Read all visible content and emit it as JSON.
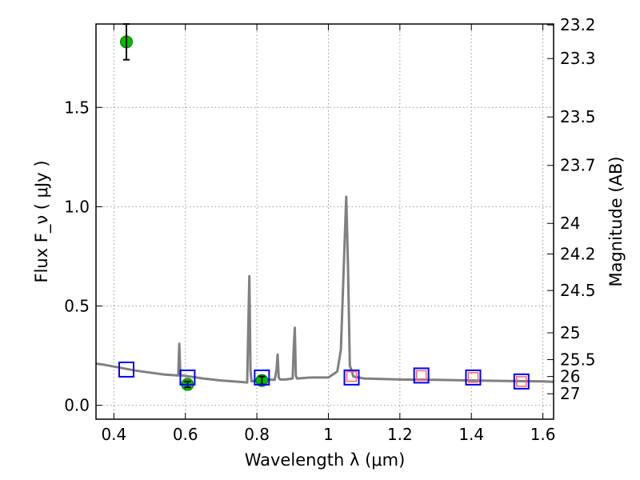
{
  "chart_data": {
    "type": "scatter",
    "xlabel": "Wavelength  λ (μm)",
    "ylabel": "Flux  F_ν  ( μJy )",
    "y2label": "Magnitude (AB)",
    "xlim": [
      0.35,
      1.63
    ],
    "ylim": [
      -0.07,
      1.92
    ],
    "grid": true,
    "x_ticks": [
      {
        "value": 0.4,
        "label": "0.4"
      },
      {
        "value": 0.6,
        "label": "0.6"
      },
      {
        "value": 0.8,
        "label": "0.8"
      },
      {
        "value": 1.0,
        "label": "1"
      },
      {
        "value": 1.2,
        "label": "1.2"
      },
      {
        "value": 1.4,
        "label": "1.4"
      },
      {
        "value": 1.6,
        "label": "1.6"
      }
    ],
    "y_ticks": [
      {
        "value": 0.0,
        "label": "0.0"
      },
      {
        "value": 0.5,
        "label": "0.5"
      },
      {
        "value": 1.0,
        "label": "1.0"
      },
      {
        "value": 1.5,
        "label": "1.5"
      }
    ],
    "y2_ticks": [
      {
        "label": "23.2",
        "flux": 1.915
      },
      {
        "label": "23.3",
        "flux": 1.746
      },
      {
        "label": "23.5",
        "flux": 1.452
      },
      {
        "label": "23.7",
        "flux": 1.208
      },
      {
        "label": "24",
        "flux": 0.916
      },
      {
        "label": "24.2",
        "flux": 0.762
      },
      {
        "label": "24.5",
        "flux": 0.578
      },
      {
        "label": "25",
        "flux": 0.365
      },
      {
        "label": "25.5",
        "flux": 0.23
      },
      {
        "label": "26",
        "flux": 0.145
      },
      {
        "label": "27",
        "flux": 0.058
      }
    ],
    "series": [
      {
        "kind": "line",
        "color": "#808080",
        "x": [
          0.35,
          0.37,
          0.4,
          0.43,
          0.46,
          0.5,
          0.54,
          0.58,
          0.583,
          0.586,
          0.589,
          0.6,
          0.65,
          0.7,
          0.75,
          0.773,
          0.776,
          0.779,
          0.782,
          0.785,
          0.8,
          0.83,
          0.85,
          0.855,
          0.858,
          0.861,
          0.865,
          0.88,
          0.9,
          0.903,
          0.906,
          0.909,
          0.912,
          0.95,
          1.0,
          1.025,
          1.035,
          1.045,
          1.05,
          1.055,
          1.06,
          1.07,
          1.1,
          1.2,
          1.3,
          1.4,
          1.5,
          1.6,
          1.63
        ],
        "y": [
          0.21,
          0.205,
          0.195,
          0.185,
          0.175,
          0.165,
          0.155,
          0.15,
          0.31,
          0.15,
          0.15,
          0.148,
          0.135,
          0.125,
          0.118,
          0.115,
          0.4,
          0.65,
          0.18,
          0.12,
          0.125,
          0.13,
          0.128,
          0.18,
          0.255,
          0.14,
          0.13,
          0.13,
          0.135,
          0.28,
          0.39,
          0.15,
          0.135,
          0.14,
          0.14,
          0.17,
          0.28,
          0.8,
          1.05,
          0.7,
          0.2,
          0.145,
          0.135,
          0.13,
          0.128,
          0.125,
          0.122,
          0.12,
          0.118
        ]
      },
      {
        "kind": "points",
        "marker": "circle",
        "color": "#00bb00",
        "points": [
          {
            "x": 0.435,
            "y": 1.83,
            "err": 0.09
          },
          {
            "x": 0.606,
            "y": 0.105,
            "err": 0.015
          },
          {
            "x": 0.814,
            "y": 0.125,
            "err": 0.02
          }
        ]
      },
      {
        "kind": "points",
        "marker": "square",
        "color": "#0000ff",
        "points": [
          {
            "x": 0.435,
            "y": 0.18
          },
          {
            "x": 0.606,
            "y": 0.14
          },
          {
            "x": 0.814,
            "y": 0.14
          },
          {
            "x": 1.065,
            "y": 0.14
          },
          {
            "x": 1.26,
            "y": 0.15
          },
          {
            "x": 1.405,
            "y": 0.14
          },
          {
            "x": 1.54,
            "y": 0.12
          }
        ]
      },
      {
        "kind": "points",
        "marker": "square-small",
        "color": "#ff6666",
        "points": [
          {
            "x": 1.065,
            "y": 0.145
          },
          {
            "x": 1.26,
            "y": 0.15
          },
          {
            "x": 1.405,
            "y": 0.14
          },
          {
            "x": 1.54,
            "y": 0.12
          }
        ]
      }
    ]
  }
}
